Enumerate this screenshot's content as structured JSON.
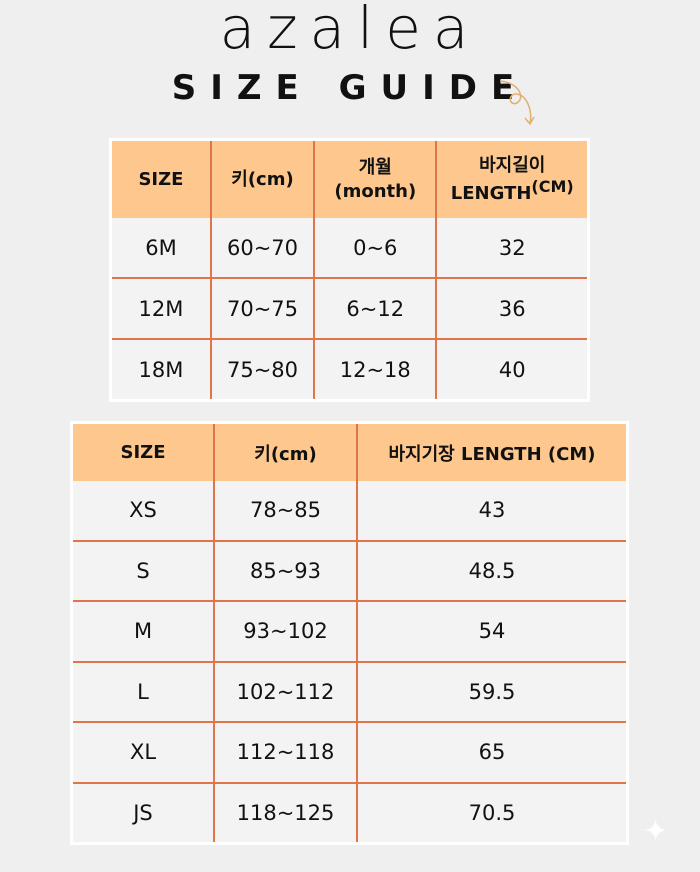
{
  "brand": "azalea",
  "title": "SIZE GUIDE",
  "colors": {
    "header": "#fdc78d",
    "lines": "#e0754a",
    "background": "#efefef"
  },
  "table1": {
    "headers": [
      "SIZE",
      "키(cm)",
      "개월",
      "(month)",
      "바지길이",
      "LENGTH",
      "(CM)"
    ],
    "rows": [
      [
        "6M",
        "60~70",
        "0~6",
        "32"
      ],
      [
        "12M",
        "70~75",
        "6~12",
        "36"
      ],
      [
        "18M",
        "75~80",
        "12~18",
        "40"
      ]
    ]
  },
  "table2": {
    "headers": [
      "SIZE",
      "키(cm)",
      "바지기장 LENGTH (CM)"
    ],
    "rows": [
      [
        "XS",
        "78~85",
        "43"
      ],
      [
        "S",
        "85~93",
        "48.5"
      ],
      [
        "M",
        "93~102",
        "54"
      ],
      [
        "L",
        "102~112",
        "59.5"
      ],
      [
        "XL",
        "112~118",
        "65"
      ],
      [
        "JS",
        "118~125",
        "70.5"
      ]
    ]
  }
}
